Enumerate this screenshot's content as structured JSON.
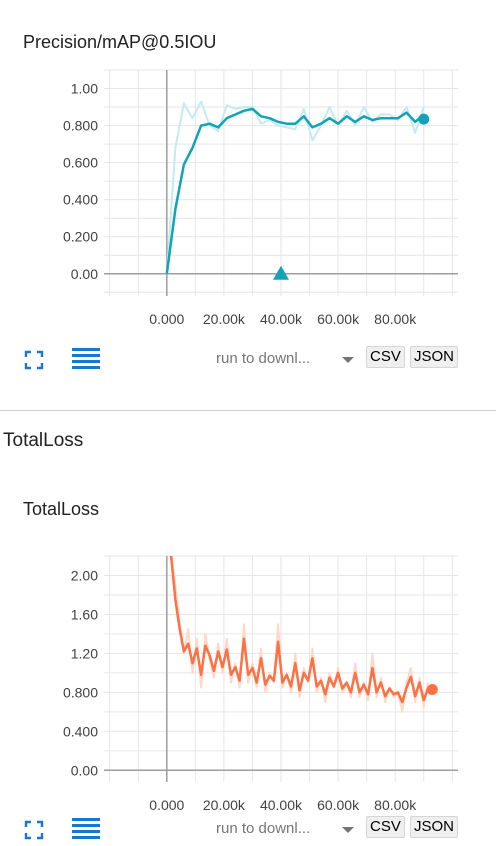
{
  "charts": [
    {
      "title": "Precision/mAP@0.5IOU",
      "color": "#12a4b6",
      "color_light": "#c5eaef",
      "chart_data": {
        "type": "line",
        "title": "Precision/mAP@0.5IOU",
        "xlim": [
          -22000,
          102000
        ],
        "ylim": [
          -0.12,
          1.1
        ],
        "x_ticks": [
          0,
          20000,
          40000,
          60000,
          80000
        ],
        "x_tick_labels": [
          "0.000",
          "20.00k",
          "40.00k",
          "60.00k",
          "80.00k"
        ],
        "y_ticks": [
          0,
          0.2,
          0.4,
          0.6,
          0.8,
          1.0
        ],
        "y_tick_labels": [
          "0.00",
          "0.200",
          "0.400",
          "0.600",
          "0.800",
          "1.00"
        ],
        "grid": true,
        "series": [
          {
            "role": "raw",
            "x": [
              0,
              3000,
              6000,
              9000,
              12000,
              15000,
              18000,
              21000,
              24000,
              27000,
              30000,
              33000,
              36000,
              39000,
              42000,
              45000,
              48000,
              51000,
              54000,
              57000,
              60000,
              63000,
              66000,
              69000,
              72000,
              75000,
              78000,
              81000,
              84000,
              87000,
              90000
            ],
            "y": [
              0,
              0.68,
              0.92,
              0.84,
              0.93,
              0.8,
              0.77,
              0.91,
              0.89,
              0.9,
              0.9,
              0.81,
              0.83,
              0.8,
              0.79,
              0.78,
              0.89,
              0.72,
              0.8,
              0.9,
              0.8,
              0.88,
              0.8,
              0.9,
              0.82,
              0.86,
              0.86,
              0.83,
              0.9,
              0.76,
              0.9
            ]
          },
          {
            "role": "smoothed",
            "x": [
              0,
              3000,
              6000,
              9000,
              12000,
              15000,
              18000,
              21000,
              24000,
              27000,
              30000,
              33000,
              36000,
              39000,
              42000,
              45000,
              48000,
              51000,
              54000,
              57000,
              60000,
              63000,
              66000,
              69000,
              72000,
              75000,
              78000,
              81000,
              84000,
              87000,
              90000
            ],
            "y": [
              0,
              0.35,
              0.59,
              0.68,
              0.8,
              0.81,
              0.79,
              0.84,
              0.86,
              0.88,
              0.89,
              0.85,
              0.84,
              0.82,
              0.81,
              0.81,
              0.85,
              0.79,
              0.81,
              0.84,
              0.81,
              0.85,
              0.82,
              0.85,
              0.83,
              0.84,
              0.84,
              0.84,
              0.87,
              0.82,
              0.86
            ]
          }
        ],
        "endpoint": {
          "x": 90000,
          "y": 0.835
        },
        "marker": {
          "x": 40000,
          "y": 0.0,
          "shape": "triangle"
        }
      }
    },
    {
      "title": "TotalLoss",
      "color": "#ff7043",
      "color_light": "#ffd8c9",
      "chart_data": {
        "type": "line",
        "title": "TotalLoss",
        "xlim": [
          -22000,
          102000
        ],
        "ylim": [
          -0.12,
          2.2
        ],
        "x_ticks": [
          0,
          20000,
          40000,
          60000,
          80000
        ],
        "x_tick_labels": [
          "0.000",
          "20.00k",
          "40.00k",
          "60.00k",
          "80.00k"
        ],
        "y_ticks": [
          0,
          0.4,
          0.8,
          1.2,
          1.6,
          2.0
        ],
        "y_tick_labels": [
          "0.00",
          "0.400",
          "0.800",
          "1.20",
          "1.60",
          "2.00"
        ],
        "grid": true,
        "series": [
          {
            "role": "raw",
            "x": [
              1500,
              3000,
              4500,
              6000,
              7500,
              9000,
              10500,
              12000,
              13500,
              15000,
              16500,
              18000,
              19500,
              21000,
              22500,
              24000,
              25500,
              27000,
              28500,
              30000,
              31500,
              33000,
              34500,
              36000,
              37500,
              39000,
              40500,
              42000,
              43500,
              45000,
              46500,
              48000,
              49500,
              51000,
              52500,
              54000,
              55500,
              57000,
              58500,
              60000,
              61500,
              63000,
              64500,
              66000,
              67500,
              69000,
              70500,
              72000,
              73500,
              75000,
              76500,
              78000,
              79500,
              81000,
              82500,
              84000,
              85500,
              87000,
              88500,
              90000,
              91500
            ],
            "y": [
              2.25,
              1.9,
              1.5,
              1.2,
              1.45,
              1.0,
              1.35,
              0.85,
              1.4,
              1.15,
              0.95,
              1.3,
              1.0,
              1.35,
              0.9,
              1.1,
              0.85,
              1.5,
              0.9,
              1.1,
              0.85,
              1.25,
              0.8,
              1.0,
              0.9,
              1.5,
              0.85,
              1.0,
              0.8,
              1.2,
              0.75,
              1.05,
              0.9,
              1.25,
              0.8,
              0.95,
              0.7,
              1.0,
              0.85,
              1.05,
              0.8,
              0.9,
              0.75,
              1.1,
              0.75,
              0.9,
              0.72,
              1.2,
              0.75,
              0.95,
              0.7,
              0.85,
              0.75,
              0.8,
              0.6,
              0.9,
              1.05,
              0.7,
              0.95,
              0.65,
              0.9
            ]
          },
          {
            "role": "smoothed",
            "x": [
              1500,
              3000,
              4500,
              6000,
              7500,
              9000,
              10500,
              12000,
              13500,
              15000,
              16500,
              18000,
              19500,
              21000,
              22500,
              24000,
              25500,
              27000,
              28500,
              30000,
              31500,
              33000,
              34500,
              36000,
              37500,
              39000,
              40500,
              42000,
              43500,
              45000,
              46500,
              48000,
              49500,
              51000,
              52500,
              54000,
              55500,
              57000,
              58500,
              60000,
              61500,
              63000,
              64500,
              66000,
              67500,
              69000,
              70500,
              72000,
              73500,
              75000,
              76500,
              78000,
              79500,
              81000,
              82500,
              84000,
              85500,
              87000,
              88500,
              90000,
              91500
            ],
            "y": [
              2.2,
              1.75,
              1.45,
              1.22,
              1.3,
              1.1,
              1.25,
              0.98,
              1.28,
              1.18,
              1.02,
              1.22,
              1.06,
              1.24,
              0.98,
              1.06,
              0.92,
              1.35,
              0.98,
              1.05,
              0.9,
              1.15,
              0.88,
              0.97,
              0.92,
              1.32,
              0.9,
              0.98,
              0.86,
              1.1,
              0.82,
              1.0,
              0.92,
              1.15,
              0.86,
              0.92,
              0.78,
              0.95,
              0.86,
              1.0,
              0.84,
              0.9,
              0.8,
              1.0,
              0.8,
              0.88,
              0.78,
              1.05,
              0.8,
              0.9,
              0.76,
              0.84,
              0.78,
              0.8,
              0.7,
              0.85,
              0.96,
              0.76,
              0.9,
              0.72,
              0.84
            ]
          }
        ],
        "endpoint": {
          "x": 93000,
          "y": 0.83
        }
      }
    }
  ],
  "section": {
    "title": "TotalLoss"
  },
  "toolbar": {
    "run_label": "run to downl...",
    "csv_label": "CSV",
    "json_label": "JSON",
    "fullscreen_icon": "fullscreen-icon",
    "expand_icon": "list-lines-icon"
  }
}
